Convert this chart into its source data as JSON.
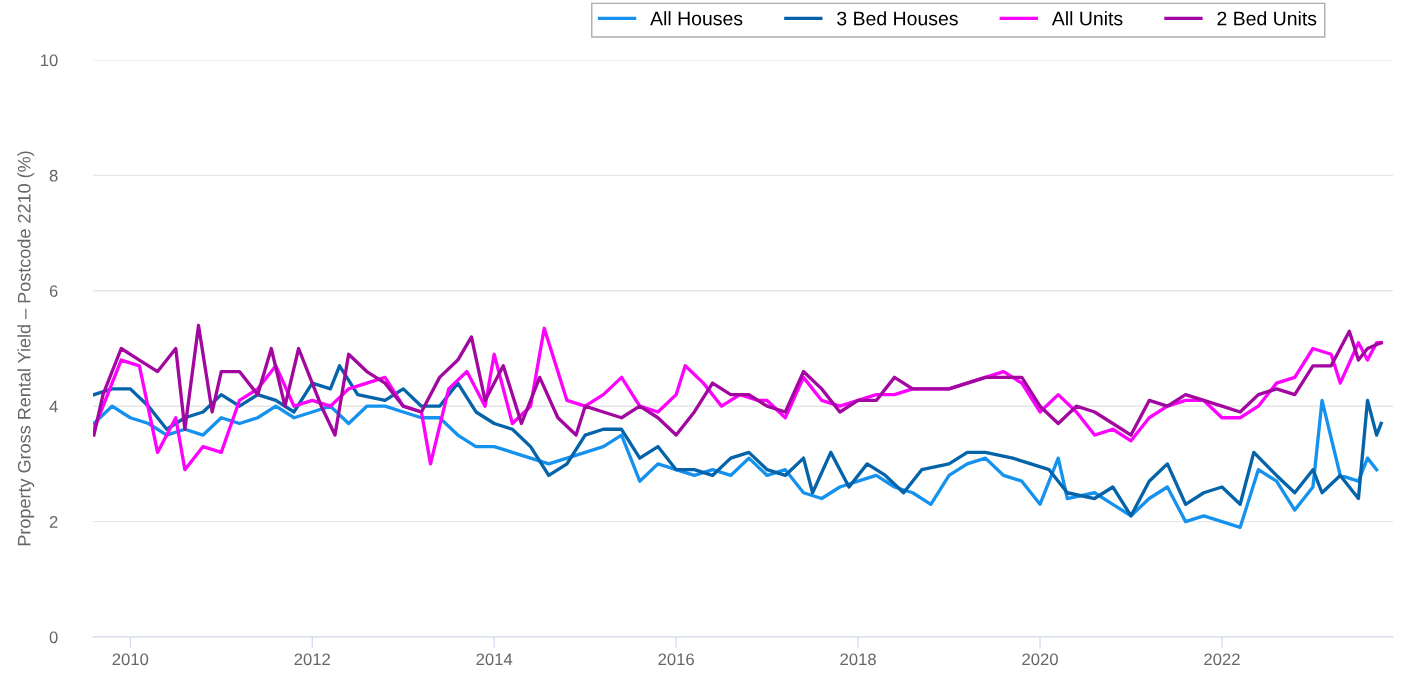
{
  "chart_data": {
    "type": "line",
    "ylabel": "Property Gross Rental Yield – Postcode 2210 (%)",
    "xlim": [
      2009.59,
      2023.88
    ],
    "xticks": [
      2010,
      2012,
      2014,
      2016,
      2018,
      2020,
      2022
    ],
    "ylim": [
      0,
      10
    ],
    "yticks": [
      0,
      2,
      4,
      6,
      8,
      10
    ],
    "grid": "y",
    "legend": "top right",
    "line_style": "solid",
    "series": [
      {
        "name": "All Houses",
        "color": "#1592ee",
        "x": [
          2009.6,
          2009.8,
          2010.0,
          2010.2,
          2010.4,
          2010.6,
          2010.8,
          2011.0,
          2011.2,
          2011.4,
          2011.6,
          2011.8,
          2012.0,
          2012.2,
          2012.4,
          2012.6,
          2012.8,
          2013.0,
          2013.2,
          2013.4,
          2013.6,
          2013.8,
          2014.0,
          2014.2,
          2014.4,
          2014.6,
          2014.8,
          2015.0,
          2015.2,
          2015.4,
          2015.6,
          2015.8,
          2016.0,
          2016.2,
          2016.4,
          2016.6,
          2016.8,
          2017.0,
          2017.2,
          2017.4,
          2017.6,
          2017.8,
          2018.0,
          2018.2,
          2018.4,
          2018.6,
          2018.8,
          2019.0,
          2019.2,
          2019.4,
          2019.6,
          2019.8,
          2020.0,
          2020.2,
          2020.3,
          2020.6,
          2020.8,
          2021.0,
          2021.2,
          2021.4,
          2021.6,
          2021.8,
          2022.0,
          2022.2,
          2022.4,
          2022.6,
          2022.8,
          2023.0,
          2023.1,
          2023.3,
          2023.5,
          2023.6,
          2023.7
        ],
        "values": [
          3.7,
          4.0,
          3.8,
          3.7,
          3.5,
          3.6,
          3.5,
          3.8,
          3.7,
          3.8,
          4.0,
          3.8,
          3.9,
          4.0,
          3.7,
          4.0,
          4.0,
          3.9,
          3.8,
          3.8,
          3.5,
          3.3,
          3.3,
          3.2,
          3.1,
          3.0,
          3.1,
          3.2,
          3.3,
          3.5,
          2.7,
          3.0,
          2.9,
          2.8,
          2.9,
          2.8,
          3.1,
          2.8,
          2.9,
          2.5,
          2.4,
          2.6,
          2.7,
          2.8,
          2.6,
          2.5,
          2.3,
          2.8,
          3.0,
          3.1,
          2.8,
          2.7,
          2.3,
          3.1,
          2.4,
          2.5,
          2.3,
          2.1,
          2.4,
          2.6,
          2.0,
          2.1,
          2.0,
          1.9,
          2.9,
          2.7,
          2.2,
          2.6,
          4.1,
          2.8,
          2.7,
          3.1,
          2.9
        ]
      },
      {
        "name": "3 Bed Houses",
        "color": "#0463a9",
        "x": [
          2009.6,
          2009.8,
          2010.0,
          2010.2,
          2010.4,
          2010.6,
          2010.8,
          2011.0,
          2011.2,
          2011.4,
          2011.6,
          2011.8,
          2012.0,
          2012.2,
          2012.3,
          2012.5,
          2012.8,
          2013.0,
          2013.2,
          2013.4,
          2013.6,
          2013.8,
          2014.0,
          2014.2,
          2014.4,
          2014.6,
          2014.8,
          2015.0,
          2015.2,
          2015.4,
          2015.6,
          2015.8,
          2016.0,
          2016.2,
          2016.4,
          2016.6,
          2016.8,
          2017.0,
          2017.2,
          2017.4,
          2017.5,
          2017.7,
          2017.9,
          2018.1,
          2018.3,
          2018.5,
          2018.7,
          2019.0,
          2019.2,
          2019.4,
          2019.7,
          2019.9,
          2020.1,
          2020.3,
          2020.6,
          2020.8,
          2021.0,
          2021.2,
          2021.4,
          2021.6,
          2021.8,
          2022.0,
          2022.2,
          2022.35,
          2022.6,
          2022.8,
          2023.0,
          2023.1,
          2023.3,
          2023.5,
          2023.6,
          2023.7,
          2023.75
        ],
        "values": [
          4.2,
          4.3,
          4.3,
          4.0,
          3.6,
          3.8,
          3.9,
          4.2,
          4.0,
          4.2,
          4.1,
          3.9,
          4.4,
          4.3,
          4.7,
          4.2,
          4.1,
          4.3,
          4.0,
          4.0,
          4.4,
          3.9,
          3.7,
          3.6,
          3.3,
          2.8,
          3.0,
          3.5,
          3.6,
          3.6,
          3.1,
          3.3,
          2.9,
          2.9,
          2.8,
          3.1,
          3.2,
          2.9,
          2.8,
          3.1,
          2.5,
          3.2,
          2.6,
          3.0,
          2.8,
          2.5,
          2.9,
          3.0,
          3.2,
          3.2,
          3.1,
          3.0,
          2.9,
          2.5,
          2.4,
          2.6,
          2.1,
          2.7,
          3.0,
          2.3,
          2.5,
          2.6,
          2.3,
          3.2,
          2.8,
          2.5,
          2.9,
          2.5,
          2.8,
          2.4,
          4.1,
          3.5,
          3.7
        ]
      },
      {
        "name": "All Units",
        "color": "#fd03fd",
        "x": [
          2009.6,
          2009.8,
          2009.9,
          2010.1,
          2010.3,
          2010.5,
          2010.6,
          2010.8,
          2011.0,
          2011.2,
          2011.4,
          2011.6,
          2011.8,
          2012.0,
          2012.2,
          2012.4,
          2012.6,
          2012.8,
          2013.0,
          2013.2,
          2013.3,
          2013.5,
          2013.7,
          2013.9,
          2014.0,
          2014.2,
          2014.4,
          2014.55,
          2014.7,
          2014.8,
          2015.0,
          2015.2,
          2015.4,
          2015.6,
          2015.8,
          2016.0,
          2016.1,
          2016.3,
          2016.5,
          2016.7,
          2016.9,
          2017.0,
          2017.2,
          2017.4,
          2017.6,
          2017.8,
          2018.0,
          2018.2,
          2018.4,
          2018.6,
          2018.8,
          2019.0,
          2019.2,
          2019.4,
          2019.6,
          2019.8,
          2020.0,
          2020.2,
          2020.4,
          2020.6,
          2020.8,
          2021.0,
          2021.2,
          2021.4,
          2021.6,
          2021.8,
          2022.0,
          2022.2,
          2022.4,
          2022.6,
          2022.8,
          2023.0,
          2023.2,
          2023.3,
          2023.5,
          2023.6,
          2023.7,
          2023.75
        ],
        "values": [
          3.6,
          4.4,
          4.8,
          4.7,
          3.2,
          3.8,
          2.9,
          3.3,
          3.2,
          4.1,
          4.3,
          4.7,
          4.0,
          4.1,
          4.0,
          4.3,
          4.4,
          4.5,
          4.0,
          3.9,
          3.0,
          4.3,
          4.6,
          4.0,
          4.9,
          3.7,
          4.0,
          5.35,
          4.6,
          4.1,
          4.0,
          4.2,
          4.5,
          4.0,
          3.9,
          4.2,
          4.7,
          4.4,
          4.0,
          4.2,
          4.1,
          4.1,
          3.8,
          4.5,
          4.1,
          4.0,
          4.1,
          4.2,
          4.2,
          4.3,
          4.3,
          4.3,
          4.4,
          4.5,
          4.6,
          4.4,
          3.9,
          4.2,
          3.9,
          3.5,
          3.6,
          3.4,
          3.8,
          4.0,
          4.1,
          4.1,
          3.8,
          3.8,
          4.0,
          4.4,
          4.5,
          5.0,
          4.9,
          4.4,
          5.1,
          4.8,
          5.1,
          5.1
        ]
      },
      {
        "name": "2 Bed Units",
        "color": "#a2089f",
        "x": [
          2009.6,
          2009.7,
          2009.9,
          2010.1,
          2010.3,
          2010.5,
          2010.6,
          2010.75,
          2010.9,
          2011.0,
          2011.2,
          2011.4,
          2011.55,
          2011.7,
          2011.85,
          2012.0,
          2012.1,
          2012.25,
          2012.4,
          2012.6,
          2012.8,
          2013.0,
          2013.2,
          2013.4,
          2013.6,
          2013.75,
          2013.9,
          2014.1,
          2014.3,
          2014.5,
          2014.7,
          2014.9,
          2015.0,
          2015.2,
          2015.4,
          2015.6,
          2015.8,
          2016.0,
          2016.2,
          2016.4,
          2016.6,
          2016.8,
          2017.0,
          2017.2,
          2017.4,
          2017.6,
          2017.8,
          2018.0,
          2018.2,
          2018.4,
          2018.6,
          2018.8,
          2019.0,
          2019.2,
          2019.4,
          2019.6,
          2019.8,
          2020.0,
          2020.2,
          2020.4,
          2020.6,
          2020.8,
          2021.0,
          2021.2,
          2021.4,
          2021.6,
          2021.8,
          2022.0,
          2022.2,
          2022.4,
          2022.6,
          2022.8,
          2023.0,
          2023.2,
          2023.4,
          2023.5,
          2023.6,
          2023.75
        ],
        "values": [
          3.5,
          4.2,
          5.0,
          4.8,
          4.6,
          5.0,
          3.6,
          5.4,
          3.9,
          4.6,
          4.6,
          4.2,
          5.0,
          4.0,
          5.0,
          4.4,
          4.0,
          3.5,
          4.9,
          4.6,
          4.4,
          4.0,
          3.9,
          4.5,
          4.8,
          5.2,
          4.1,
          4.7,
          3.7,
          4.5,
          3.8,
          3.5,
          4.0,
          3.9,
          3.8,
          4.0,
          3.8,
          3.5,
          3.9,
          4.4,
          4.2,
          4.2,
          4.0,
          3.9,
          4.6,
          4.3,
          3.9,
          4.1,
          4.1,
          4.5,
          4.3,
          4.3,
          4.3,
          4.4,
          4.5,
          4.5,
          4.5,
          4.0,
          3.7,
          4.0,
          3.9,
          3.7,
          3.5,
          4.1,
          4.0,
          4.2,
          4.1,
          4.0,
          3.9,
          4.2,
          4.3,
          4.2,
          4.7,
          4.7,
          5.3,
          4.8,
          5.0,
          5.1
        ]
      }
    ]
  }
}
